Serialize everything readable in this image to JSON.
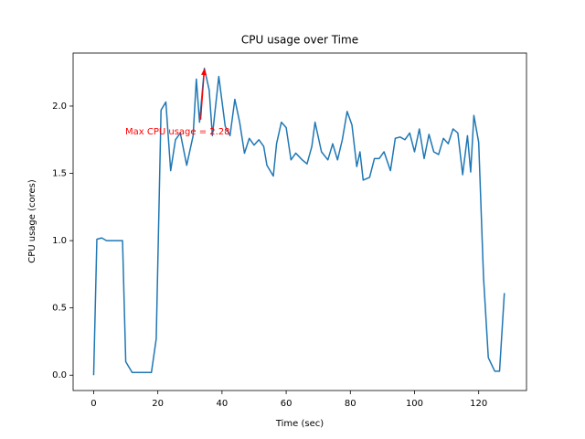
{
  "chart_data": {
    "type": "line",
    "title": "CPU usage over Time",
    "x_label": "Time (sec)",
    "y_label": "CPU usage (cores)",
    "annotation": "Max CPU usage = 2.28",
    "annotation_color": "#ff0000",
    "xlim": [
      -6.4,
      134.9
    ],
    "ylim": [
      -0.114,
      2.394
    ],
    "xticks": [
      0,
      20,
      40,
      60,
      80,
      100,
      120
    ],
    "yticks": [
      {
        "value": 0,
        "label": "0.0"
      },
      {
        "value": 0.5,
        "label": "0.5"
      },
      {
        "value": 1,
        "label": "1.0"
      },
      {
        "value": 1.5,
        "label": "1.5"
      },
      {
        "value": 2,
        "label": "2.0"
      }
    ],
    "series": [
      {
        "name": "CPU usage",
        "color": "#1f77b4",
        "x": [
          0,
          1,
          2.5,
          4,
          6,
          8,
          9,
          10,
          12,
          14,
          16,
          18,
          19.5,
          21,
          22.5,
          24,
          25.5,
          27,
          29,
          31,
          32,
          33,
          34.5,
          36,
          37,
          39,
          41,
          42.5,
          44,
          45.5,
          47,
          48.5,
          50,
          51.5,
          53,
          54,
          56,
          57,
          58.5,
          60,
          61.5,
          63,
          65,
          66.5,
          68,
          69,
          71,
          73,
          74.5,
          76,
          77.5,
          79,
          80.5,
          82,
          83,
          84,
          86,
          87.5,
          89,
          90.5,
          92.5,
          94,
          95.5,
          97,
          98.5,
          100,
          101.5,
          103,
          104.5,
          106,
          107.5,
          109,
          110.5,
          112,
          113.5,
          115,
          116.5,
          117.5,
          118.5,
          120,
          121.5,
          123,
          125,
          126.5,
          128
        ],
        "values": [
          0.0,
          1.01,
          1.02,
          1.0,
          1.0,
          1.0,
          1.0,
          0.1,
          0.02,
          0.02,
          0.02,
          0.02,
          0.27,
          1.97,
          2.03,
          1.52,
          1.75,
          1.8,
          1.56,
          1.78,
          2.2,
          1.88,
          2.28,
          2.12,
          1.78,
          2.22,
          1.85,
          1.78,
          2.05,
          1.88,
          1.65,
          1.76,
          1.71,
          1.75,
          1.7,
          1.56,
          1.48,
          1.72,
          1.88,
          1.84,
          1.6,
          1.65,
          1.6,
          1.57,
          1.7,
          1.88,
          1.66,
          1.6,
          1.72,
          1.6,
          1.75,
          1.96,
          1.86,
          1.55,
          1.66,
          1.45,
          1.47,
          1.61,
          1.61,
          1.66,
          1.52,
          1.76,
          1.77,
          1.75,
          1.8,
          1.66,
          1.83,
          1.61,
          1.79,
          1.66,
          1.64,
          1.76,
          1.72,
          1.83,
          1.8,
          1.49,
          1.78,
          1.51,
          1.93,
          1.73,
          0.73,
          0.13,
          0.03,
          0.03,
          0.61
        ]
      }
    ]
  }
}
